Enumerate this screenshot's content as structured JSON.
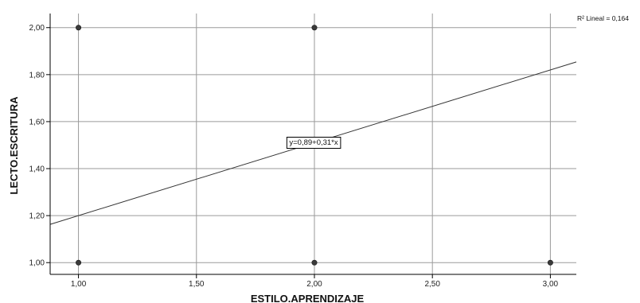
{
  "chart_data": {
    "type": "scatter",
    "xlabel": "ESTILO.APRENDIZAJE",
    "ylabel": "LECTO.ESCRITURA",
    "xlim": [
      0.88,
      3.11
    ],
    "ylim": [
      0.95,
      2.06
    ],
    "x_ticks": [
      1.0,
      1.5,
      2.0,
      2.5,
      3.0
    ],
    "x_tick_labels": [
      "1,00",
      "1,50",
      "2,00",
      "2,50",
      "3,00"
    ],
    "y_ticks": [
      1.0,
      1.2,
      1.4,
      1.6,
      1.8,
      2.0
    ],
    "y_tick_labels": [
      "1,00",
      "1,20",
      "1,40",
      "1,60",
      "1,80",
      "2,00"
    ],
    "grid": true,
    "points": [
      {
        "x": 1,
        "y": 2
      },
      {
        "x": 2,
        "y": 2
      },
      {
        "x": 1,
        "y": 1
      },
      {
        "x": 2,
        "y": 1
      },
      {
        "x": 3,
        "y": 1
      }
    ],
    "fit_line": {
      "intercept": 0.89,
      "slope": 0.31
    },
    "equation_label": "y=0,89+0,31*x",
    "r2_label": "R² Lineal = 0,164",
    "colors": {
      "point": "#3a3a3a",
      "grid": "#9a9a9a",
      "line": "#333333",
      "axis": "#000000"
    }
  }
}
